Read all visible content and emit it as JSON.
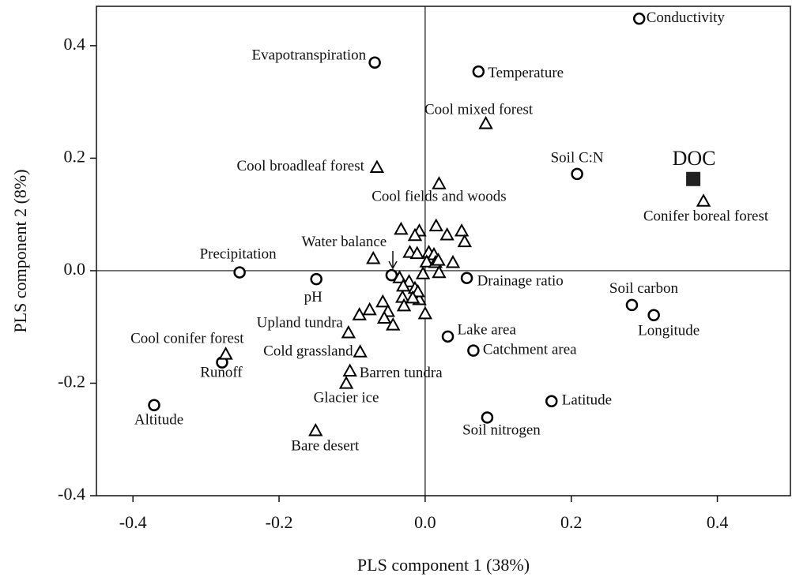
{
  "chart_data": {
    "type": "scatter",
    "x_label": "PLS component 1 (38%)",
    "y_label": "PLS component 2 (8%)",
    "xlim": [
      -0.45,
      0.5
    ],
    "ylim": [
      -0.4,
      0.47
    ],
    "xticks": [
      -0.4,
      -0.2,
      {
        "value": 0,
        "label": "0.0"
      },
      0.2,
      0.4
    ],
    "yticks": [
      -0.4,
      -0.2,
      {
        "value": 0,
        "label": "0.0"
      },
      0.2,
      0.4
    ],
    "zero_lines": true,
    "series": [
      {
        "marker": "circle",
        "color": "#000000",
        "x": [
          0.293,
          -0.069,
          0.073,
          0.208,
          -0.254,
          -0.149,
          -0.046,
          0.057,
          0.283,
          0.313,
          0.031,
          0.066,
          0.173,
          0.085,
          -0.278,
          -0.371
        ],
        "y": [
          0.448,
          0.37,
          0.354,
          0.172,
          -0.003,
          -0.015,
          -0.008,
          -0.013,
          -0.061,
          -0.079,
          -0.117,
          -0.142,
          -0.232,
          -0.261,
          -0.163,
          -0.239
        ],
        "labels": [
          "Conductivity",
          "Evapotranspiration",
          "Temperature",
          "Soil C:N",
          "Precipitation",
          "pH",
          "Water balance",
          "Drainage ratio",
          "Soil carbon",
          "Longitude",
          "Lake area",
          "Catchment area",
          "Latitude",
          "Soil nitrogen",
          "Runoff",
          "Altitude"
        ]
      },
      {
        "marker": "triangle",
        "color": "#000000",
        "x": [
          0.083,
          -0.066,
          0.019,
          0.381,
          -0.105,
          -0.273,
          -0.089,
          -0.103,
          -0.108,
          -0.15,
          -0.033,
          -0.008,
          0.015,
          -0.014,
          0.03,
          0.05,
          0.054,
          -0.071,
          -0.021,
          -0.011,
          0.005,
          0.012,
          0.002,
          0.014,
          0.018,
          0.038,
          0.019,
          -0.003,
          -0.035,
          -0.022,
          -0.03,
          -0.014,
          -0.008,
          -0.031,
          -0.01,
          -0.058,
          -0.051,
          -0.076,
          -0.09,
          -0.056,
          -0.044,
          -0.029,
          0.0,
          -0.017
        ],
        "y": [
          0.261,
          0.183,
          0.154,
          0.123,
          -0.111,
          -0.149,
          -0.145,
          -0.179,
          -0.201,
          -0.285,
          0.073,
          0.07,
          0.079,
          0.062,
          0.063,
          0.07,
          0.051,
          0.021,
          0.032,
          0.03,
          0.032,
          0.028,
          0.015,
          0.014,
          0.018,
          0.014,
          -0.004,
          -0.006,
          -0.013,
          -0.02,
          -0.028,
          -0.032,
          -0.052,
          -0.048,
          -0.038,
          -0.056,
          -0.073,
          -0.07,
          -0.079,
          -0.085,
          -0.097,
          -0.063,
          -0.077,
          -0.049
        ],
        "labels": [
          "Cool mixed forest",
          "Cool broadleaf forest",
          "Cool fields and woods",
          "Conifer boreal forest",
          "Upland tundra",
          "Cool conifer forest",
          "Cold grassland",
          "Barren tundra",
          "Glacier ice",
          "Bare desert",
          null,
          null,
          null,
          null,
          null,
          null,
          null,
          null,
          null,
          null,
          null,
          null,
          null,
          null,
          null,
          null,
          null,
          null,
          null,
          null,
          null,
          null,
          null,
          null,
          null,
          null,
          null,
          null,
          null,
          null,
          null,
          null,
          null,
          null
        ]
      },
      {
        "marker": "square",
        "color": "#222222",
        "x": [
          0.367
        ],
        "y": [
          0.163
        ],
        "labels": [
          "DOC"
        ]
      }
    ]
  }
}
